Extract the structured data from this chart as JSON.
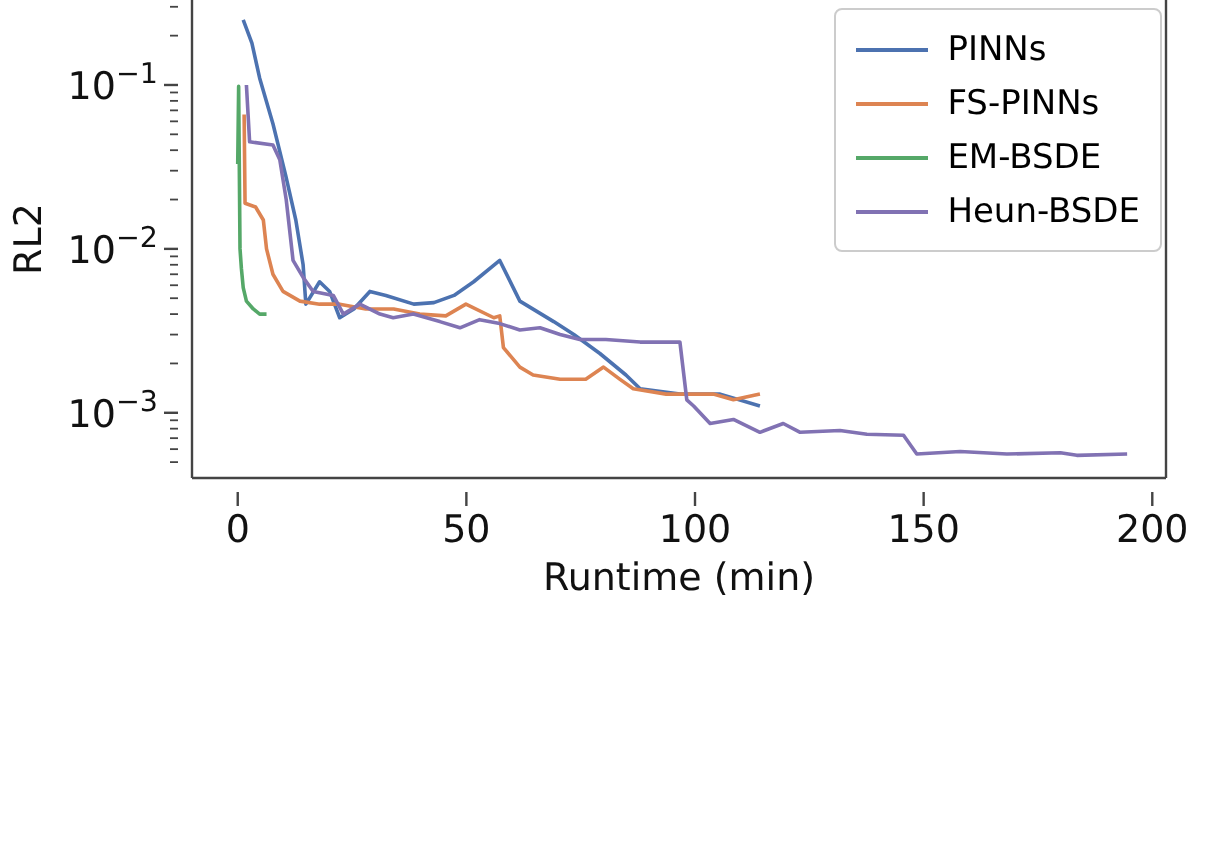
{
  "chart_data": {
    "type": "line",
    "xlabel": "Runtime (min)",
    "ylabel": "RL2",
    "log": "y",
    "legend": "top right",
    "marker": "none",
    "line_style": "solid",
    "grid": false,
    "xlim": [
      -10,
      203
    ],
    "xticks": [
      0,
      50,
      100,
      150,
      200
    ],
    "ylim": [
      0.0004,
      0.33
    ],
    "yticks": [
      {
        "value": 0.0005,
        "label": null
      },
      {
        "value": 0.0006,
        "label": null
      },
      {
        "value": 0.0007,
        "label": null
      },
      {
        "value": 0.0008,
        "label": null
      },
      {
        "value": 0.0009,
        "label": null
      },
      {
        "value": 0.001,
        "label": "10$^{−3}$"
      },
      {
        "value": 0.002,
        "label": null
      },
      {
        "value": 0.003,
        "label": null
      },
      {
        "value": 0.004,
        "label": null
      },
      {
        "value": 0.005,
        "label": null
      },
      {
        "value": 0.006,
        "label": null
      },
      {
        "value": 0.007,
        "label": null
      },
      {
        "value": 0.008,
        "label": null
      },
      {
        "value": 0.009,
        "label": null
      },
      {
        "value": 0.01,
        "label": "10$^{−2}$"
      },
      {
        "value": 0.02,
        "label": null
      },
      {
        "value": 0.03,
        "label": null
      },
      {
        "value": 0.04,
        "label": null
      },
      {
        "value": 0.05,
        "label": null
      },
      {
        "value": 0.06,
        "label": null
      },
      {
        "value": 0.07,
        "label": null
      },
      {
        "value": 0.08,
        "label": null
      },
      {
        "value": 0.09,
        "label": null
      },
      {
        "value": 0.1,
        "label": "10$^{−1}$"
      },
      {
        "value": 0.2,
        "label": null
      },
      {
        "value": 0.3,
        "label": null
      }
    ],
    "series": [
      {
        "name": "PINNs",
        "color": "#4c72b0",
        "x": [
          1.2,
          3.1,
          4.8,
          7.7,
          10.5,
          12.7,
          14.3,
          14.9,
          17.9,
          20.1,
          22.3,
          25.4,
          28.9,
          32.4,
          38.5,
          42.9,
          47.3,
          51.6,
          57.3,
          61.7,
          69.1,
          73.5,
          79.2,
          84.9,
          88.0,
          96.7,
          105.5,
          114.2
        ],
        "values": [
          0.25,
          0.18,
          0.11,
          0.058,
          0.028,
          0.015,
          0.008,
          0.0046,
          0.0063,
          0.0055,
          0.0038,
          0.0043,
          0.0055,
          0.0052,
          0.0046,
          0.0047,
          0.0052,
          0.0063,
          0.0085,
          0.0048,
          0.0036,
          0.003,
          0.0023,
          0.0017,
          0.0014,
          0.0013,
          0.0013,
          0.0011
        ]
      },
      {
        "name": "FS-PINNs",
        "color": "#dd8452",
        "x": [
          1.4,
          1.6,
          3.9,
          5.6,
          6.3,
          7.7,
          9.9,
          13.6,
          17.9,
          22.3,
          28.0,
          34.1,
          39.8,
          45.5,
          49.9,
          56.0,
          57.3,
          58.1,
          61.7,
          64.6,
          70.5,
          76.1,
          80.0,
          83.6,
          86.5,
          93.7,
          99.7,
          104.0,
          108.4,
          114.2
        ],
        "values": [
          0.066,
          0.019,
          0.018,
          0.015,
          0.01,
          0.007,
          0.0055,
          0.0048,
          0.0046,
          0.0046,
          0.0043,
          0.0043,
          0.004,
          0.0039,
          0.0046,
          0.0038,
          0.0039,
          0.0025,
          0.0019,
          0.0017,
          0.0016,
          0.0016,
          0.0019,
          0.0016,
          0.0014,
          0.0013,
          0.0013,
          0.0013,
          0.0012,
          0.0013
        ]
      },
      {
        "name": "EM-BSDE",
        "color": "#55a868",
        "x": [
          0,
          0.2,
          0.5,
          0.8,
          1.2,
          1.9,
          3.4,
          4.8,
          6.3
        ],
        "values": [
          0.033,
          0.098,
          0.01,
          0.0076,
          0.0058,
          0.0048,
          0.0043,
          0.004,
          0.004
        ]
      },
      {
        "name": "Heun-BSDE",
        "color": "#8172b3",
        "x": [
          1.9,
          2.6,
          7.7,
          9.2,
          10.6,
          12.1,
          14.3,
          16.5,
          20.9,
          23.1,
          26.7,
          31.1,
          34.0,
          38.4,
          44.2,
          48.6,
          52.9,
          57.3,
          61.7,
          66.1,
          70.5,
          74.8,
          80.5,
          88.0,
          96.7,
          98.2,
          99.7,
          103.3,
          108.4,
          114.2,
          119.3,
          123.0,
          131.7,
          137.6,
          145.6,
          148.5,
          158.0,
          168.2,
          179.9,
          183.5,
          194.5
        ],
        "values": [
          0.1,
          0.045,
          0.043,
          0.035,
          0.02,
          0.0085,
          0.0067,
          0.0055,
          0.0052,
          0.004,
          0.0046,
          0.004,
          0.0038,
          0.004,
          0.0036,
          0.0033,
          0.0037,
          0.0035,
          0.0032,
          0.0033,
          0.003,
          0.0028,
          0.0028,
          0.0027,
          0.0027,
          0.0012,
          0.0011,
          0.00086,
          0.00091,
          0.00076,
          0.00086,
          0.00076,
          0.00078,
          0.00074,
          0.00073,
          0.00056,
          0.00058,
          0.00056,
          0.00057,
          0.00055,
          0.00056
        ]
      }
    ]
  }
}
